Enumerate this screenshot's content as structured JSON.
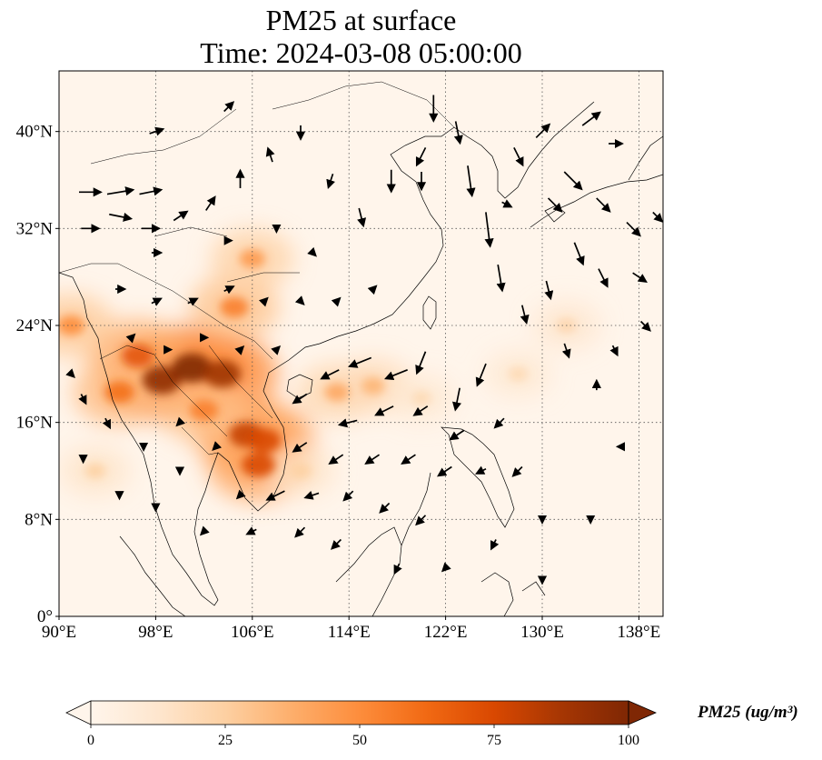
{
  "title_line1": "PM25 at surface",
  "title_line2": "Time: 2024-03-08 05:00:00",
  "map": {
    "lon_range": [
      90,
      140
    ],
    "lat_range": [
      0,
      45
    ],
    "lon_ticks": [
      {
        "value": 90,
        "label": "90°E"
      },
      {
        "value": 98,
        "label": "98°E"
      },
      {
        "value": 106,
        "label": "106°E"
      },
      {
        "value": 114,
        "label": "114°E"
      },
      {
        "value": 122,
        "label": "122°E"
      },
      {
        "value": 130,
        "label": "130°E"
      },
      {
        "value": 138,
        "label": "138°E"
      }
    ],
    "lat_ticks": [
      {
        "value": 0,
        "label": "0°"
      },
      {
        "value": 8,
        "label": "8°N"
      },
      {
        "value": 16,
        "label": "16°N"
      },
      {
        "value": 24,
        "label": "24°N"
      },
      {
        "value": 32,
        "label": "32°N"
      },
      {
        "value": 40,
        "label": "40°N"
      }
    ],
    "gridlines": "dotted",
    "background_color": "#fff5eb"
  },
  "colorbar": {
    "label": "PM25 (ug/m³)",
    "ticks": [
      {
        "value": 0,
        "label": "0"
      },
      {
        "value": 25,
        "label": "25"
      },
      {
        "value": 50,
        "label": "50"
      },
      {
        "value": 75,
        "label": "75"
      },
      {
        "value": 100,
        "label": "100"
      }
    ],
    "range": [
      0,
      100
    ],
    "colormap": [
      "#fff5eb",
      "#fee6ce",
      "#fdd0a2",
      "#fdae6b",
      "#fd8d3c",
      "#f16913",
      "#d94801",
      "#a63603",
      "#7f2704"
    ]
  },
  "pm25_hotspots": [
    {
      "lon": 98.5,
      "lat": 19.5,
      "value": 95
    },
    {
      "lon": 101,
      "lat": 20.5,
      "value": 100
    },
    {
      "lon": 103.5,
      "lat": 20.0,
      "value": 90
    },
    {
      "lon": 96.5,
      "lat": 21.5,
      "value": 70
    },
    {
      "lon": 95,
      "lat": 18.5,
      "value": 60
    },
    {
      "lon": 105.5,
      "lat": 15.0,
      "value": 80
    },
    {
      "lon": 107,
      "lat": 14.5,
      "value": 75
    },
    {
      "lon": 106.5,
      "lat": 12.5,
      "value": 75
    },
    {
      "lon": 104.5,
      "lat": 25.5,
      "value": 55
    },
    {
      "lon": 106,
      "lat": 29.5,
      "value": 45
    },
    {
      "lon": 113,
      "lat": 18.5,
      "value": 40
    },
    {
      "lon": 116,
      "lat": 19.0,
      "value": 35
    },
    {
      "lon": 91,
      "lat": 24,
      "value": 50
    },
    {
      "lon": 102,
      "lat": 17,
      "value": 55
    },
    {
      "lon": 110,
      "lat": 12,
      "value": 25
    },
    {
      "lon": 132,
      "lat": 24,
      "value": 22
    },
    {
      "lon": 128,
      "lat": 20,
      "value": 20
    },
    {
      "lon": 93,
      "lat": 12,
      "value": 25
    },
    {
      "lon": 120,
      "lat": 18,
      "value": 20
    }
  ],
  "wind_vectors": [
    {
      "lon": 92.5,
      "lat": 35,
      "u": 5,
      "v": 0
    },
    {
      "lon": 95,
      "lat": 35,
      "u": 6,
      "v": 1
    },
    {
      "lon": 97.5,
      "lat": 35,
      "u": 5,
      "v": 1
    },
    {
      "lon": 92.5,
      "lat": 32,
      "u": 4,
      "v": 0
    },
    {
      "lon": 95,
      "lat": 33,
      "u": 5,
      "v": -1
    },
    {
      "lon": 97.5,
      "lat": 32,
      "u": 4,
      "v": 0
    },
    {
      "lon": 100,
      "lat": 33,
      "u": 3,
      "v": 2
    },
    {
      "lon": 102.5,
      "lat": 34,
      "u": 2,
      "v": 3
    },
    {
      "lon": 105,
      "lat": 36,
      "u": 0,
      "v": 4
    },
    {
      "lon": 107.5,
      "lat": 38,
      "u": -1,
      "v": 3
    },
    {
      "lon": 110,
      "lat": 40,
      "u": 0,
      "v": -3
    },
    {
      "lon": 104,
      "lat": 42,
      "u": 2,
      "v": 2
    },
    {
      "lon": 98,
      "lat": 40,
      "u": 3,
      "v": 1
    },
    {
      "lon": 112.5,
      "lat": 36,
      "u": -1,
      "v": -3
    },
    {
      "lon": 115,
      "lat": 33,
      "u": 1,
      "v": -4
    },
    {
      "lon": 117.5,
      "lat": 36,
      "u": 0,
      "v": -5
    },
    {
      "lon": 120,
      "lat": 38,
      "u": -2,
      "v": -4
    },
    {
      "lon": 121,
      "lat": 42,
      "u": 0,
      "v": -6
    },
    {
      "lon": 123,
      "lat": 40,
      "u": 1,
      "v": -5
    },
    {
      "lon": 124,
      "lat": 36,
      "u": 1,
      "v": -7
    },
    {
      "lon": 125.5,
      "lat": 32,
      "u": 1,
      "v": -8
    },
    {
      "lon": 126.5,
      "lat": 28,
      "u": 1,
      "v": -6
    },
    {
      "lon": 128,
      "lat": 38,
      "u": 2,
      "v": -4
    },
    {
      "lon": 130,
      "lat": 40,
      "u": 3,
      "v": 3
    },
    {
      "lon": 132.5,
      "lat": 36,
      "u": 4,
      "v": -4
    },
    {
      "lon": 135,
      "lat": 34,
      "u": 3,
      "v": -3
    },
    {
      "lon": 137.5,
      "lat": 32,
      "u": 3,
      "v": -3
    },
    {
      "lon": 133,
      "lat": 30,
      "u": 2,
      "v": -5
    },
    {
      "lon": 135,
      "lat": 28,
      "u": 2,
      "v": -4
    },
    {
      "lon": 138,
      "lat": 28,
      "u": 3,
      "v": -2
    },
    {
      "lon": 130.5,
      "lat": 27,
      "u": 1,
      "v": -4
    },
    {
      "lon": 128.5,
      "lat": 25,
      "u": 1,
      "v": -4
    },
    {
      "lon": 132,
      "lat": 22,
      "u": 1,
      "v": -3
    },
    {
      "lon": 134.5,
      "lat": 19,
      "u": 0,
      "v": 2
    },
    {
      "lon": 136.5,
      "lat": 14,
      "u": -1,
      "v": 0
    },
    {
      "lon": 125,
      "lat": 20,
      "u": -2,
      "v": -5
    },
    {
      "lon": 123,
      "lat": 18,
      "u": -1,
      "v": -5
    },
    {
      "lon": 120,
      "lat": 21,
      "u": -2,
      "v": -5
    },
    {
      "lon": 118,
      "lat": 20,
      "u": -5,
      "v": -2
    },
    {
      "lon": 115,
      "lat": 21,
      "u": -5,
      "v": -2
    },
    {
      "lon": 112.5,
      "lat": 20,
      "u": -4,
      "v": -2
    },
    {
      "lon": 110,
      "lat": 18,
      "u": -3,
      "v": -2
    },
    {
      "lon": 114,
      "lat": 16,
      "u": -4,
      "v": -1
    },
    {
      "lon": 117,
      "lat": 17,
      "u": -4,
      "v": -2
    },
    {
      "lon": 120,
      "lat": 17,
      "u": -3,
      "v": -2
    },
    {
      "lon": 123,
      "lat": 15,
      "u": -3,
      "v": -2
    },
    {
      "lon": 126.5,
      "lat": 16,
      "u": -2,
      "v": -2
    },
    {
      "lon": 128,
      "lat": 12,
      "u": -2,
      "v": -2
    },
    {
      "lon": 125,
      "lat": 12,
      "u": -2,
      "v": -1
    },
    {
      "lon": 122,
      "lat": 12,
      "u": -3,
      "v": -2
    },
    {
      "lon": 119,
      "lat": 13,
      "u": -3,
      "v": -2
    },
    {
      "lon": 116,
      "lat": 13,
      "u": -3,
      "v": -2
    },
    {
      "lon": 113,
      "lat": 13,
      "u": -3,
      "v": -2
    },
    {
      "lon": 110,
      "lat": 14,
      "u": -3,
      "v": -2
    },
    {
      "lon": 108,
      "lat": 10,
      "u": -4,
      "v": -2
    },
    {
      "lon": 111,
      "lat": 10,
      "u": -3,
      "v": -1
    },
    {
      "lon": 114,
      "lat": 10,
      "u": -2,
      "v": -2
    },
    {
      "lon": 117,
      "lat": 9,
      "u": -2,
      "v": -2
    },
    {
      "lon": 120,
      "lat": 8,
      "u": -2,
      "v": -2
    },
    {
      "lon": 110,
      "lat": 7,
      "u": -2,
      "v": -2
    },
    {
      "lon": 113,
      "lat": 6,
      "u": -2,
      "v": -2
    },
    {
      "lon": 106,
      "lat": 7,
      "u": -2,
      "v": -1
    },
    {
      "lon": 102,
      "lat": 7,
      "u": -1,
      "v": -1
    },
    {
      "lon": 98,
      "lat": 9,
      "u": 0,
      "v": -1
    },
    {
      "lon": 95,
      "lat": 10,
      "u": 0,
      "v": -1
    },
    {
      "lon": 92,
      "lat": 13,
      "u": 0,
      "v": -1
    },
    {
      "lon": 92,
      "lat": 18,
      "u": 1,
      "v": -2
    },
    {
      "lon": 94,
      "lat": 16,
      "u": 1,
      "v": -2
    },
    {
      "lon": 91,
      "lat": 20,
      "u": 1,
      "v": -1
    },
    {
      "lon": 95,
      "lat": 27,
      "u": 2,
      "v": 0
    },
    {
      "lon": 98,
      "lat": 26,
      "u": 2,
      "v": 1
    },
    {
      "lon": 101,
      "lat": 26,
      "u": 2,
      "v": 1
    },
    {
      "lon": 104,
      "lat": 27,
      "u": 2,
      "v": 1
    },
    {
      "lon": 107,
      "lat": 26,
      "u": 1,
      "v": 1
    },
    {
      "lon": 110,
      "lat": 26,
      "u": 1,
      "v": -1
    },
    {
      "lon": 113,
      "lat": 26,
      "u": 1,
      "v": 1
    },
    {
      "lon": 116,
      "lat": 27,
      "u": 1,
      "v": 1
    },
    {
      "lon": 111,
      "lat": 30,
      "u": 1,
      "v": -1
    },
    {
      "lon": 108,
      "lat": 32,
      "u": 0,
      "v": -1
    },
    {
      "lon": 104,
      "lat": 31,
      "u": 1,
      "v": 0
    },
    {
      "lon": 98,
      "lat": 30,
      "u": 2,
      "v": 0
    },
    {
      "lon": 102,
      "lat": 23,
      "u": 1,
      "v": 0
    },
    {
      "lon": 105,
      "lat": 22,
      "u": 1,
      "v": 1
    },
    {
      "lon": 108,
      "lat": 22,
      "u": 1,
      "v": 1
    },
    {
      "lon": 99,
      "lat": 22,
      "u": 1,
      "v": 0
    },
    {
      "lon": 96,
      "lat": 23,
      "u": 1,
      "v": 1
    },
    {
      "lon": 100,
      "lat": 16,
      "u": -1,
      "v": -1
    },
    {
      "lon": 103,
      "lat": 14,
      "u": -1,
      "v": -1
    },
    {
      "lon": 100,
      "lat": 12,
      "u": 0,
      "v": -1
    },
    {
      "lon": 97,
      "lat": 14,
      "u": 0,
      "v": -1
    },
    {
      "lon": 105,
      "lat": 10,
      "u": -1,
      "v": -1
    },
    {
      "lon": 118,
      "lat": 4,
      "u": -1,
      "v": -2
    },
    {
      "lon": 122,
      "lat": 4,
      "u": -1,
      "v": -1
    },
    {
      "lon": 126,
      "lat": 6,
      "u": -1,
      "v": -2
    },
    {
      "lon": 130,
      "lat": 8,
      "u": 0,
      "v": -1
    },
    {
      "lon": 134,
      "lat": 8,
      "u": 0,
      "v": -1
    },
    {
      "lon": 130,
      "lat": 3,
      "u": 0,
      "v": -1
    },
    {
      "lon": 136,
      "lat": 22,
      "u": 1,
      "v": -2
    },
    {
      "lon": 138.5,
      "lat": 24,
      "u": 2,
      "v": -2
    },
    {
      "lon": 139.5,
      "lat": 33,
      "u": 2,
      "v": -2
    },
    {
      "lon": 127,
      "lat": 34,
      "u": 2,
      "v": -1
    },
    {
      "lon": 131,
      "lat": 34,
      "u": 3,
      "v": -3
    },
    {
      "lon": 136,
      "lat": 39,
      "u": 3,
      "v": 0
    },
    {
      "lon": 134,
      "lat": 41,
      "u": 4,
      "v": 3
    },
    {
      "lon": 120,
      "lat": 36,
      "u": 0,
      "v": -4
    }
  ]
}
